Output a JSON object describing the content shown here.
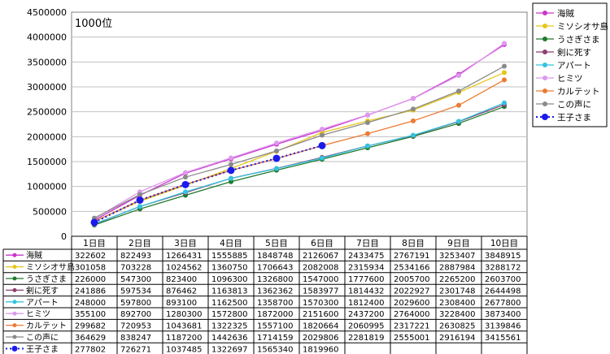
{
  "chart_data": {
    "type": "line",
    "annotation": "1000位",
    "categories": [
      "1日目",
      "2日目",
      "3日目",
      "4日目",
      "5日目",
      "6日目",
      "7日目",
      "8日目",
      "9日目",
      "10日目"
    ],
    "ylim": [
      0,
      4500000
    ],
    "yticks": [
      0,
      500000,
      1000000,
      1500000,
      2000000,
      2500000,
      3000000,
      3500000,
      4000000,
      4500000
    ],
    "grid": true,
    "legend_position": "right",
    "series": [
      {
        "name": "海賊",
        "color": "#cc33cc",
        "marker": "circle",
        "dashed": false,
        "values": [
          322602,
          822493,
          1266431,
          1555885,
          1848748,
          2126067,
          2433475,
          2767191,
          3253407,
          3848915
        ]
      },
      {
        "name": "ミソシオサ島",
        "color": "#e6c619",
        "marker": "circle",
        "dashed": false,
        "values": [
          301058,
          703228,
          1024562,
          1360750,
          1706643,
          2082008,
          2315934,
          2534166,
          2887984,
          3288172
        ]
      },
      {
        "name": "うさぎさま",
        "color": "#1f7a2e",
        "marker": "circle",
        "dashed": false,
        "values": [
          226000,
          547300,
          823400,
          1096300,
          1326800,
          1547000,
          1777600,
          2005700,
          2265200,
          2603700
        ]
      },
      {
        "name": "剣に死す",
        "color": "#8c3f6e",
        "marker": "circle",
        "dashed": false,
        "values": [
          241886,
          597534,
          876462,
          1163813,
          1362362,
          1583977,
          1814432,
          2022927,
          2301748,
          2644498
        ]
      },
      {
        "name": "アパート",
        "color": "#33c4e0",
        "marker": "circle",
        "dashed": false,
        "values": [
          248000,
          597800,
          893100,
          1162500,
          1358700,
          1570300,
          1812400,
          2029600,
          2308400,
          2677800
        ]
      },
      {
        "name": "ヒミツ",
        "color": "#dd99ee",
        "marker": "circle",
        "dashed": false,
        "values": [
          355100,
          892700,
          1280300,
          1572800,
          1872000,
          2151600,
          2437200,
          2764000,
          3228400,
          3873400
        ]
      },
      {
        "name": "カルテット",
        "color": "#ee7a33",
        "marker": "circle",
        "dashed": false,
        "values": [
          299682,
          720953,
          1043681,
          1322325,
          1557100,
          1820664,
          2060995,
          2317221,
          2630825,
          3139846
        ]
      },
      {
        "name": "この声に",
        "color": "#8a8a8a",
        "marker": "circle",
        "dashed": false,
        "values": [
          364629,
          838247,
          1187200,
          1442636,
          1714159,
          2029806,
          2281819,
          2555001,
          2916194,
          3415561
        ]
      },
      {
        "name": "王子さま",
        "color": "#1a1aee",
        "marker": "big-circle",
        "dashed": true,
        "values": [
          277802,
          726271,
          1037485,
          1322697,
          1565340,
          1819960,
          null,
          null,
          null,
          null
        ]
      }
    ]
  }
}
